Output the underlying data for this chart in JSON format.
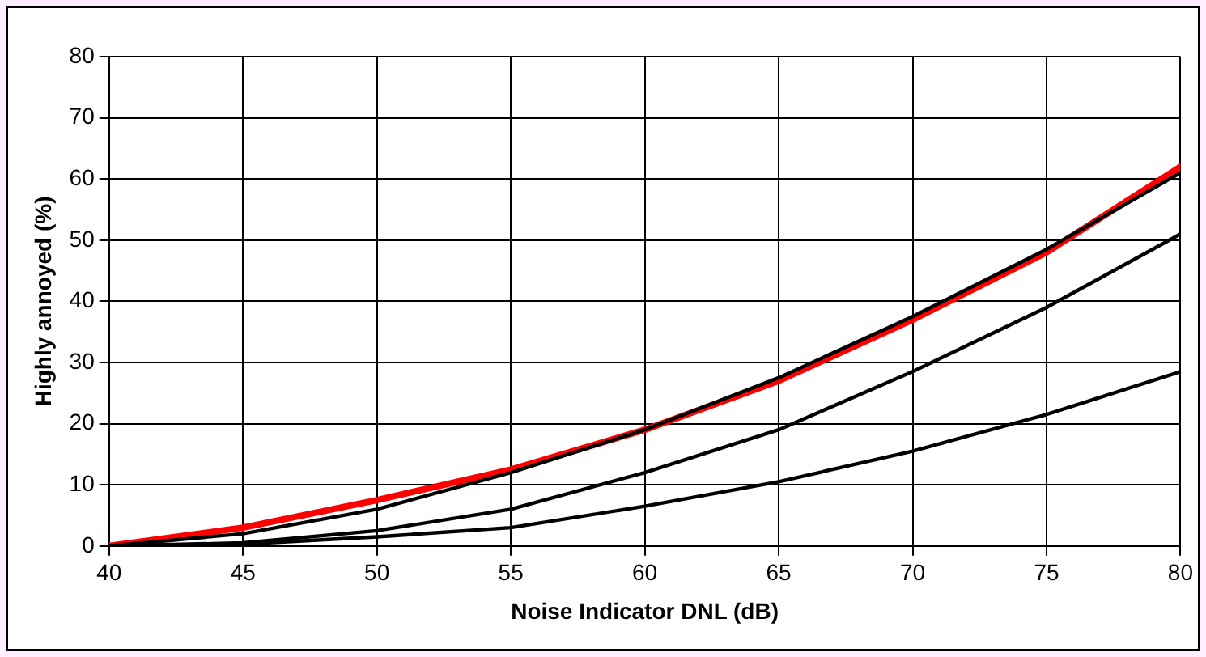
{
  "chart_data": {
    "type": "line",
    "xlabel": "Noise Indicator DNL (dB)",
    "ylabel": "Highly annoyed (%)",
    "x": [
      40,
      45,
      50,
      55,
      60,
      65,
      70,
      75,
      80
    ],
    "series": [
      {
        "color": "#000000",
        "values": [
          0,
          2,
          6,
          12,
          19,
          27.5,
          37.5,
          48.5,
          61
        ]
      },
      {
        "color": "#000000",
        "values": [
          0,
          0.5,
          2.5,
          6,
          12,
          19,
          28.5,
          39,
          51
        ]
      },
      {
        "color": "#000000",
        "values": [
          0,
          0.3,
          1.5,
          3,
          6.5,
          10.5,
          15.5,
          21.5,
          28.5
        ]
      },
      {
        "color": "#ff0000",
        "values": [
          0,
          3,
          7.5,
          12.5,
          19,
          27,
          37,
          48,
          62
        ]
      }
    ],
    "xlim": [
      40,
      80
    ],
    "xticks": [
      40,
      45,
      50,
      55,
      60,
      65,
      70,
      75,
      80
    ],
    "ylim": [
      0,
      80
    ],
    "yticks": [
      0,
      10,
      20,
      30,
      40,
      50,
      60,
      70,
      80
    ],
    "grid": true,
    "legend": false,
    "marker": "none",
    "line_style": "solid"
  }
}
